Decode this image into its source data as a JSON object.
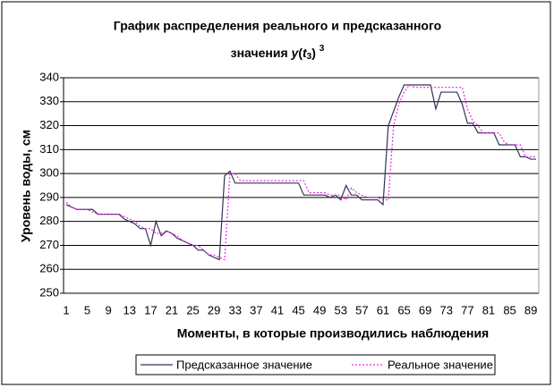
{
  "chart_data": {
    "type": "line",
    "title": "График распределения реального и предсказанного",
    "title_line2": "значения",
    "title_formula": [
      "y",
      "(",
      "t",
      "3",
      ")",
      "3"
    ],
    "x_label": "Моменты, в которые производились наблюдения",
    "y_label": "Уровень воды, см",
    "categories": [
      "1",
      null,
      null,
      null,
      "5",
      null,
      null,
      null,
      "9",
      null,
      null,
      null,
      "13",
      null,
      null,
      null,
      "17",
      null,
      null,
      null,
      "21",
      null,
      null,
      null,
      "25",
      null,
      null,
      null,
      "29",
      null,
      null,
      null,
      "33",
      null,
      null,
      null,
      "37",
      null,
      null,
      null,
      "41",
      null,
      null,
      null,
      "45",
      null,
      null,
      null,
      "49",
      null,
      null,
      null,
      "53",
      null,
      null,
      null,
      "57",
      null,
      null,
      null,
      "61",
      null,
      null,
      null,
      "65",
      null,
      null,
      null,
      "69",
      null,
      null,
      null,
      "73",
      null,
      null,
      null,
      "77",
      null,
      null,
      null,
      "81",
      null,
      null,
      null,
      "85",
      null,
      null,
      null,
      "89",
      null
    ],
    "series": [
      {
        "name": "Предсказанное значение",
        "color": "#333355",
        "dash": "none",
        "values": [
          287,
          286,
          285,
          285,
          285,
          285,
          283,
          283,
          283,
          283,
          283,
          281,
          280,
          279,
          277,
          277,
          270,
          280,
          274,
          276,
          275,
          273,
          272,
          271,
          270,
          268,
          268,
          266,
          265,
          264,
          299,
          301,
          296,
          296,
          296,
          296,
          296,
          296,
          296,
          296,
          296,
          296,
          296,
          296,
          296,
          291,
          291,
          291,
          291,
          291,
          290,
          291,
          289,
          295,
          291,
          291,
          289,
          289,
          289,
          289,
          287,
          320,
          326,
          332,
          337,
          337,
          337,
          337,
          337,
          337,
          327,
          334,
          334,
          334,
          334,
          329,
          321,
          321,
          317,
          317,
          317,
          317,
          312,
          312,
          312,
          312,
          307,
          307,
          306,
          306
        ]
      },
      {
        "name": "Реальное значение",
        "color": "#ee22ee",
        "dash": "2 2",
        "values": [
          288,
          286,
          285,
          285,
          285,
          284,
          283,
          283,
          283,
          283,
          283,
          282,
          281,
          280,
          278,
          277,
          277,
          275,
          275,
          276,
          275,
          274,
          272,
          271,
          270,
          270,
          268,
          266,
          266,
          265,
          264,
          300,
          300,
          297,
          297,
          297,
          297,
          297,
          297,
          297,
          297,
          297,
          297,
          297,
          297,
          297,
          292,
          292,
          292,
          292,
          291,
          291,
          291,
          289,
          294,
          292,
          291,
          290,
          290,
          290,
          289,
          289,
          320,
          329,
          334,
          337,
          336,
          336,
          336,
          336,
          336,
          336,
          336,
          336,
          336,
          336,
          327,
          322,
          320,
          317,
          317,
          317,
          317,
          313,
          312,
          312,
          312,
          307,
          307,
          307
        ]
      }
    ],
    "ylim": [
      250,
      340
    ],
    "yticks": [
      250,
      260,
      270,
      280,
      290,
      300,
      310,
      320,
      330,
      340
    ],
    "grid": true
  }
}
